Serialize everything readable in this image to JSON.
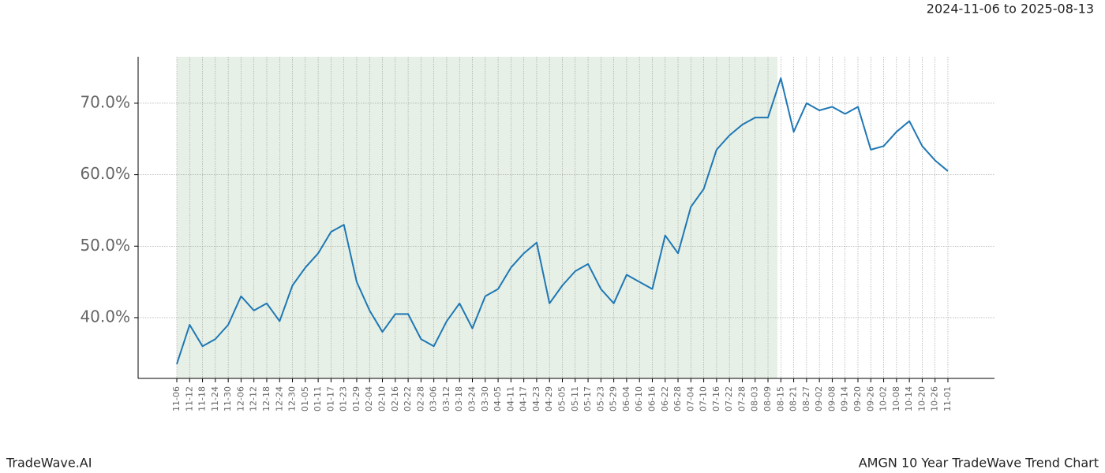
{
  "chart_data": {
    "type": "line",
    "title": "2024-11-06 to 2025-08-13",
    "footer_left": "TradeWave.AI",
    "footer_right": "AMGN 10 Year TradeWave Trend Chart",
    "categories": [
      "11-06",
      "11-12",
      "11-18",
      "11-24",
      "11-30",
      "12-06",
      "12-12",
      "12-18",
      "12-24",
      "12-30",
      "01-05",
      "01-11",
      "01-17",
      "01-23",
      "01-29",
      "02-04",
      "02-10",
      "02-16",
      "02-22",
      "02-28",
      "03-06",
      "03-12",
      "03-18",
      "03-24",
      "03-30",
      "04-05",
      "04-11",
      "04-17",
      "04-23",
      "04-29",
      "05-05",
      "05-11",
      "05-17",
      "05-23",
      "05-29",
      "06-04",
      "06-10",
      "06-16",
      "06-22",
      "06-28",
      "07-04",
      "07-10",
      "07-16",
      "07-22",
      "07-28",
      "08-03",
      "08-09",
      "08-15",
      "08-21",
      "08-27",
      "09-02",
      "09-08",
      "09-14",
      "09-20",
      "09-26",
      "10-02",
      "10-08",
      "10-14",
      "10-20",
      "10-26",
      "11-01"
    ],
    "series": [
      {
        "name": "AMGN",
        "color": "#1f77b4",
        "values": [
          33.5,
          39,
          36,
          37,
          39,
          43,
          41,
          42,
          39.5,
          44.5,
          47,
          49,
          52,
          53,
          45,
          41,
          38,
          40.5,
          40.5,
          37,
          36,
          39.5,
          42,
          38.5,
          43,
          44,
          47,
          49,
          50.5,
          42,
          44.5,
          46.5,
          47.5,
          44,
          42,
          46,
          45,
          44,
          51.5,
          49,
          55.5,
          58,
          63.5,
          65.5,
          67,
          68,
          68,
          73.5,
          66,
          70,
          69,
          69.5,
          68.5,
          69.5,
          63.5,
          64,
          66,
          67.5,
          64,
          62,
          60.5
        ]
      }
    ],
    "ylim": [
      31.5,
      76.5
    ],
    "yticks": [
      {
        "value": 40,
        "label": "40.0%"
      },
      {
        "value": 50,
        "label": "50.0%"
      },
      {
        "value": 60,
        "label": "60.0%"
      },
      {
        "value": 70,
        "label": "70.0%"
      }
    ],
    "grid": true
  }
}
